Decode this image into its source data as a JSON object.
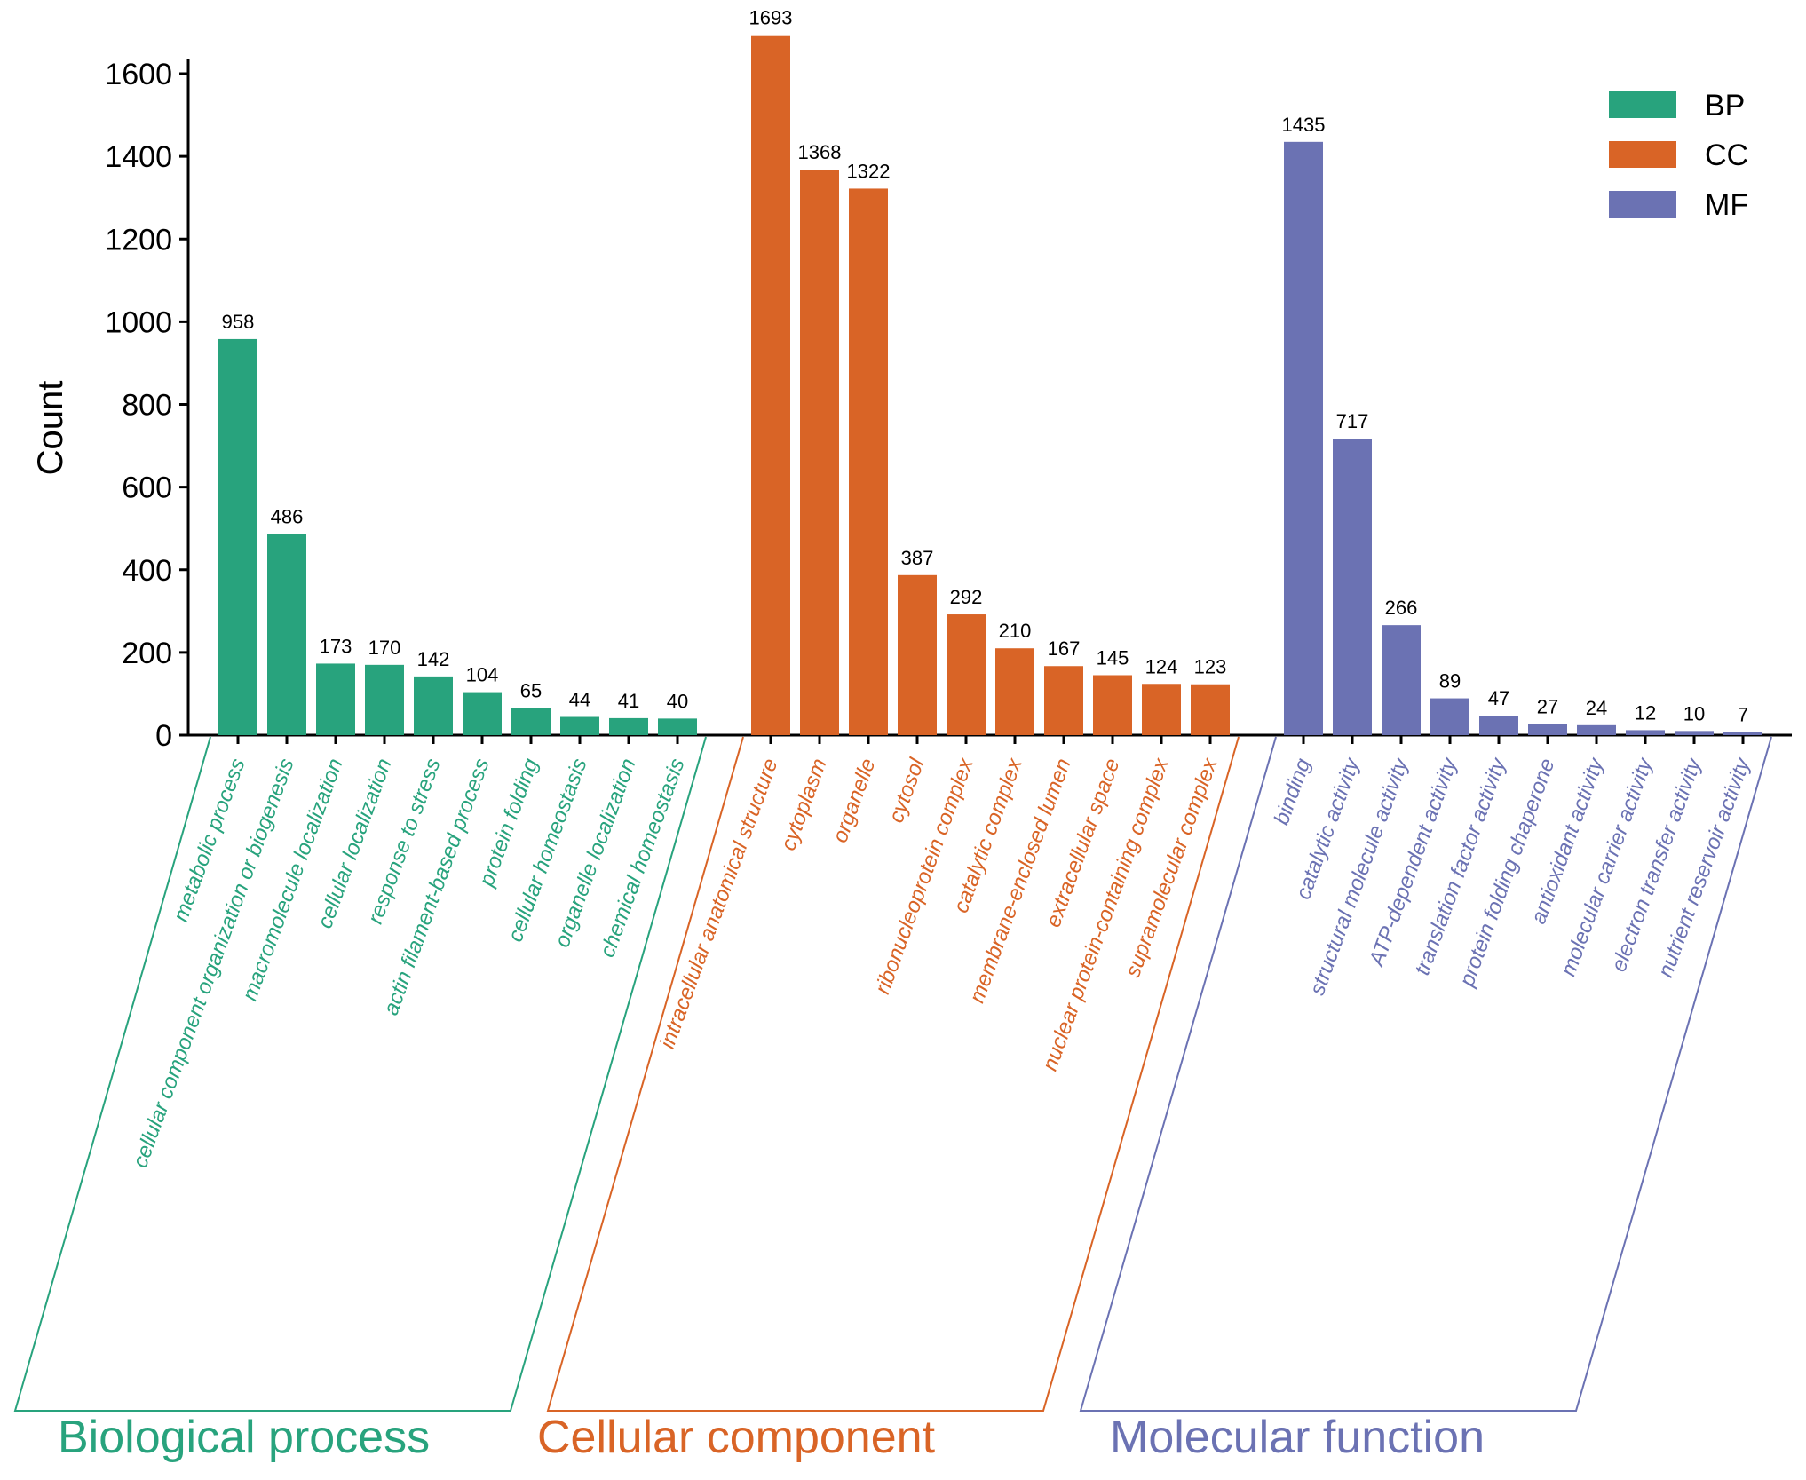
{
  "chart_data": {
    "type": "bar",
    "ylabel": "Count",
    "ylim": [
      0,
      1700
    ],
    "yticks": [
      0,
      200,
      400,
      600,
      800,
      1000,
      1200,
      1400,
      1600
    ],
    "grid": false,
    "legend_position": "top-right",
    "groups": [
      {
        "key": "BP",
        "name": "Biological process",
        "color": "#28a37d",
        "categories": [
          "metabolic process",
          "cellular component organization or biogenesis",
          "macromolecule localization",
          "cellular localization",
          "response to stress",
          "actin filament-based process",
          "protein folding",
          "cellular homeostasis",
          "organelle localization",
          "chemical homeostasis"
        ],
        "values": [
          958,
          486,
          173,
          170,
          142,
          104,
          65,
          44,
          41,
          40
        ]
      },
      {
        "key": "CC",
        "name": "Cellular component",
        "color": "#d96426",
        "categories": [
          "intracellular anatomical structure",
          "cytoplasm",
          "organelle",
          "cytosol",
          "ribonucleoprotein complex",
          "catalytic complex",
          "membrane-enclosed lumen",
          "extracellular space",
          "nuclear protein-containing complex",
          "supramolecular complex"
        ],
        "values": [
          1693,
          1368,
          1322,
          387,
          292,
          210,
          167,
          145,
          124,
          123
        ]
      },
      {
        "key": "MF",
        "name": "Molecular function",
        "color": "#6b72b3",
        "categories": [
          "binding",
          "catalytic activity",
          "structural molecule activity",
          "ATP-dependent activity",
          "translation factor activity",
          "protein folding chaperone",
          "antioxidant activity",
          "molecular carrier activity",
          "electron transfer activity",
          "nutrient reservoir activity"
        ],
        "values": [
          1435,
          717,
          266,
          89,
          47,
          27,
          24,
          12,
          10,
          7
        ]
      }
    ],
    "legend": [
      "BP",
      "CC",
      "MF"
    ]
  }
}
